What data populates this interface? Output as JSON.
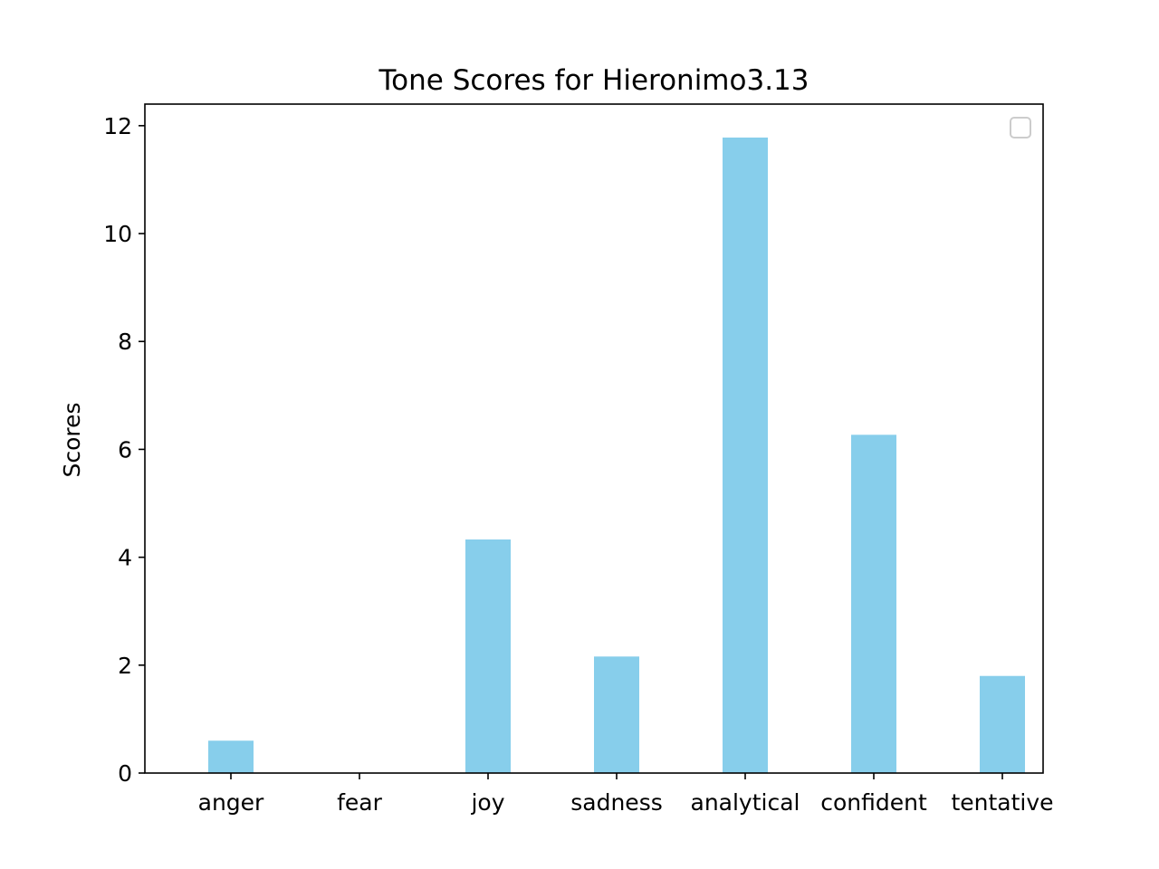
{
  "chart_data": {
    "type": "bar",
    "title": "Tone Scores for Hieronimo3.13",
    "xlabel": "",
    "ylabel": "Scores",
    "categories": [
      "anger",
      "fear",
      "joy",
      "sadness",
      "analytical",
      "confident",
      "tentative"
    ],
    "values": [
      0.6,
      0.0,
      4.33,
      2.16,
      11.78,
      6.27,
      1.8
    ],
    "ylim": [
      0,
      12.4
    ],
    "yticks": [
      "0",
      "2",
      "4",
      "6",
      "8",
      "10",
      "12"
    ],
    "bar_color": "#87ceeb",
    "grid": false,
    "legend": {
      "placement": "top-right",
      "entries": []
    }
  }
}
